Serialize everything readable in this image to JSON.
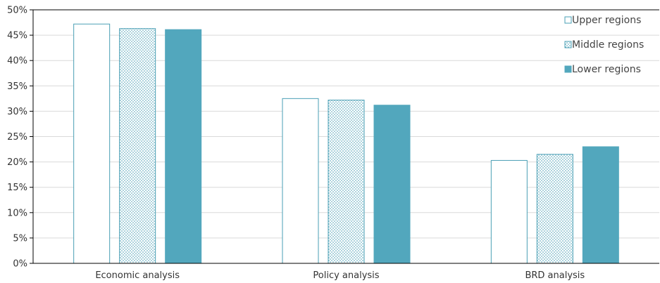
{
  "chart_data": {
    "type": "bar",
    "categories": [
      "Economic analysis",
      "Policy analysis",
      "BRD analysis"
    ],
    "series": [
      {
        "name": "Upper regions",
        "values": [
          47.2,
          32.5,
          20.3
        ]
      },
      {
        "name": "Middle regions",
        "values": [
          46.3,
          32.2,
          21.5
        ]
      },
      {
        "name": "Lower regions",
        "values": [
          46.1,
          31.2,
          23.0
        ]
      }
    ],
    "ylim": [
      0,
      50
    ],
    "yticks": [
      "0%",
      "5%",
      "10%",
      "15%",
      "20%",
      "25%",
      "30%",
      "35%",
      "40%",
      "45%",
      "50%"
    ],
    "grid": true,
    "legend_position": "top-right",
    "colors": {
      "outline": "#4a9fb5",
      "fill": "#52a7bd",
      "dots": "#4a9fb5",
      "grid": "#d9d9d9",
      "axis": "#000000"
    }
  }
}
